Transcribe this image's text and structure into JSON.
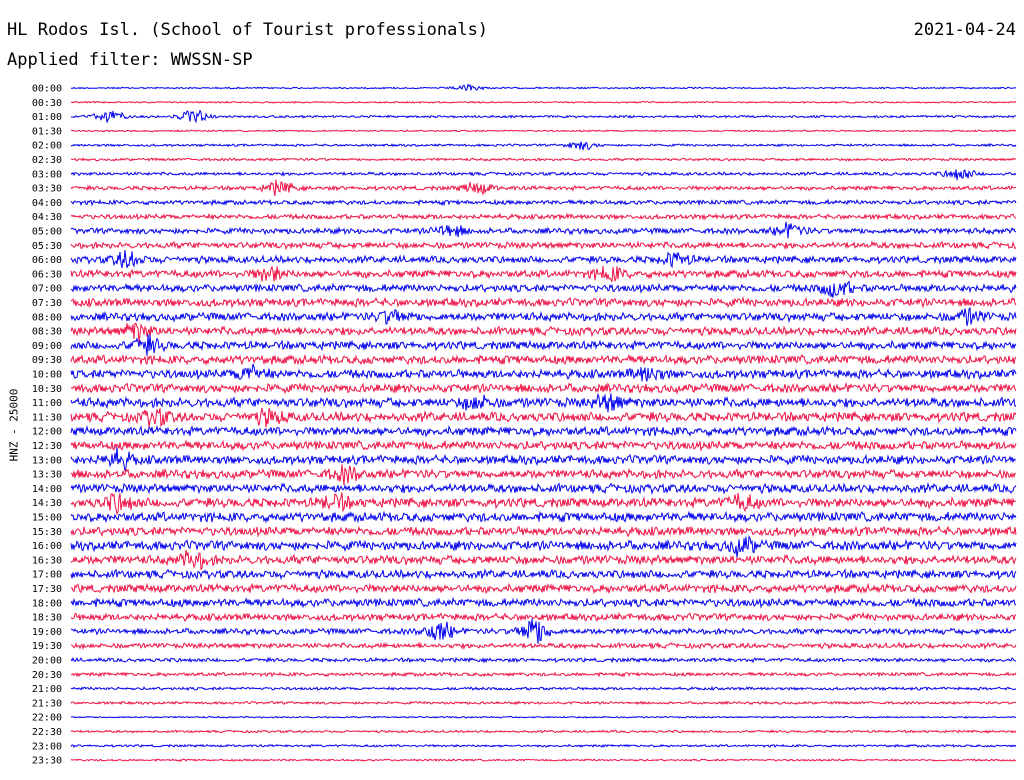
{
  "header": {
    "station": "HL Rodos Isl. (School of Tourist professionals)",
    "date": "2021-04-24",
    "filter": "Applied filter: WWSSN-SP"
  },
  "chart_data": {
    "type": "line",
    "title": "HL Rodos Isl. (School of Tourist professionals)",
    "ylabel": "HNZ - 25000",
    "xlabel": "",
    "trace_colors": [
      "#0000ee",
      "#ee1144"
    ],
    "rows": [
      {
        "label": "00:00",
        "amplitude": 0.12,
        "color": "#0000ee"
      },
      {
        "label": "00:30",
        "amplitude": 0.12,
        "color": "#ee1144"
      },
      {
        "label": "01:00",
        "amplitude": 0.18,
        "color": "#0000ee"
      },
      {
        "label": "01:30",
        "amplitude": 0.12,
        "color": "#ee1144"
      },
      {
        "label": "02:00",
        "amplitude": 0.18,
        "color": "#0000ee"
      },
      {
        "label": "02:30",
        "amplitude": 0.2,
        "color": "#ee1144"
      },
      {
        "label": "03:00",
        "amplitude": 0.25,
        "color": "#0000ee"
      },
      {
        "label": "03:30",
        "amplitude": 0.32,
        "color": "#ee1144"
      },
      {
        "label": "04:00",
        "amplitude": 0.35,
        "color": "#0000ee"
      },
      {
        "label": "04:30",
        "amplitude": 0.38,
        "color": "#ee1144"
      },
      {
        "label": "05:00",
        "amplitude": 0.45,
        "color": "#0000ee"
      },
      {
        "label": "05:30",
        "amplitude": 0.5,
        "color": "#ee1144"
      },
      {
        "label": "06:00",
        "amplitude": 0.55,
        "color": "#0000ee"
      },
      {
        "label": "06:30",
        "amplitude": 0.6,
        "color": "#ee1144"
      },
      {
        "label": "07:00",
        "amplitude": 0.6,
        "color": "#0000ee"
      },
      {
        "label": "07:30",
        "amplitude": 0.65,
        "color": "#ee1144"
      },
      {
        "label": "08:00",
        "amplitude": 0.65,
        "color": "#0000ee"
      },
      {
        "label": "08:30",
        "amplitude": 0.65,
        "color": "#ee1144"
      },
      {
        "label": "09:00",
        "amplitude": 0.65,
        "color": "#0000ee"
      },
      {
        "label": "09:30",
        "amplitude": 0.7,
        "color": "#ee1144"
      },
      {
        "label": "10:00",
        "amplitude": 0.7,
        "color": "#0000ee"
      },
      {
        "label": "10:30",
        "amplitude": 0.7,
        "color": "#ee1144"
      },
      {
        "label": "11:00",
        "amplitude": 0.75,
        "color": "#0000ee"
      },
      {
        "label": "11:30",
        "amplitude": 0.75,
        "color": "#ee1144"
      },
      {
        "label": "12:00",
        "amplitude": 0.7,
        "color": "#0000ee"
      },
      {
        "label": "12:30",
        "amplitude": 0.7,
        "color": "#ee1144"
      },
      {
        "label": "13:00",
        "amplitude": 0.7,
        "color": "#0000ee"
      },
      {
        "label": "13:30",
        "amplitude": 0.7,
        "color": "#ee1144"
      },
      {
        "label": "14:00",
        "amplitude": 0.7,
        "color": "#0000ee"
      },
      {
        "label": "14:30",
        "amplitude": 0.75,
        "color": "#ee1144"
      },
      {
        "label": "15:00",
        "amplitude": 0.75,
        "color": "#0000ee"
      },
      {
        "label": "15:30",
        "amplitude": 0.7,
        "color": "#ee1144"
      },
      {
        "label": "16:00",
        "amplitude": 0.75,
        "color": "#0000ee"
      },
      {
        "label": "16:30",
        "amplitude": 0.7,
        "color": "#ee1144"
      },
      {
        "label": "17:00",
        "amplitude": 0.65,
        "color": "#0000ee"
      },
      {
        "label": "17:30",
        "amplitude": 0.65,
        "color": "#ee1144"
      },
      {
        "label": "18:00",
        "amplitude": 0.65,
        "color": "#0000ee"
      },
      {
        "label": "18:30",
        "amplitude": 0.55,
        "color": "#ee1144"
      },
      {
        "label": "19:00",
        "amplitude": 0.45,
        "color": "#0000ee"
      },
      {
        "label": "19:30",
        "amplitude": 0.4,
        "color": "#ee1144"
      },
      {
        "label": "20:00",
        "amplitude": 0.3,
        "color": "#0000ee"
      },
      {
        "label": "20:30",
        "amplitude": 0.28,
        "color": "#ee1144"
      },
      {
        "label": "21:00",
        "amplitude": 0.22,
        "color": "#0000ee"
      },
      {
        "label": "21:30",
        "amplitude": 0.2,
        "color": "#ee1144"
      },
      {
        "label": "22:00",
        "amplitude": 0.12,
        "color": "#0000ee"
      },
      {
        "label": "22:30",
        "amplitude": 0.18,
        "color": "#ee1144"
      },
      {
        "label": "23:00",
        "amplitude": 0.18,
        "color": "#0000ee"
      },
      {
        "label": "23:30",
        "amplitude": 0.15,
        "color": "#ee1144"
      }
    ],
    "events": [
      {
        "row": "00:00",
        "x": 0.42,
        "amplitude": 0.5
      },
      {
        "row": "01:00",
        "x": 0.04,
        "amplitude": 1.0
      },
      {
        "row": "01:00",
        "x": 0.13,
        "amplitude": 1.0
      },
      {
        "row": "02:00",
        "x": 0.54,
        "amplitude": 0.7
      },
      {
        "row": "03:00",
        "x": 0.94,
        "amplitude": 0.9
      },
      {
        "row": "03:30",
        "x": 0.22,
        "amplitude": 1.0
      },
      {
        "row": "03:30",
        "x": 0.43,
        "amplitude": 0.9
      },
      {
        "row": "05:00",
        "x": 0.4,
        "amplitude": 1.0
      },
      {
        "row": "05:00",
        "x": 0.76,
        "amplitude": 1.0
      },
      {
        "row": "06:00",
        "x": 0.06,
        "amplitude": 1.2
      },
      {
        "row": "06:00",
        "x": 0.64,
        "amplitude": 1.0
      },
      {
        "row": "06:30",
        "x": 0.21,
        "amplitude": 1.0
      },
      {
        "row": "06:30",
        "x": 0.57,
        "amplitude": 1.0
      },
      {
        "row": "07:00",
        "x": 0.81,
        "amplitude": 1.3
      },
      {
        "row": "08:00",
        "x": 0.34,
        "amplitude": 1.0
      },
      {
        "row": "08:00",
        "x": 0.95,
        "amplitude": 1.0
      },
      {
        "row": "08:30",
        "x": 0.07,
        "amplitude": 1.2
      },
      {
        "row": "09:00",
        "x": 0.08,
        "amplitude": 1.2
      },
      {
        "row": "10:00",
        "x": 0.19,
        "amplitude": 1.2
      },
      {
        "row": "10:00",
        "x": 0.61,
        "amplitude": 1.0
      },
      {
        "row": "11:00",
        "x": 0.57,
        "amplitude": 1.2
      },
      {
        "row": "11:00",
        "x": 0.43,
        "amplitude": 1.0
      },
      {
        "row": "11:30",
        "x": 0.09,
        "amplitude": 1.0
      },
      {
        "row": "11:30",
        "x": 0.21,
        "amplitude": 1.0
      },
      {
        "row": "13:00",
        "x": 0.05,
        "amplitude": 1.2
      },
      {
        "row": "13:30",
        "x": 0.29,
        "amplitude": 1.0
      },
      {
        "row": "14:30",
        "x": 0.05,
        "amplitude": 1.2
      },
      {
        "row": "14:30",
        "x": 0.28,
        "amplitude": 1.0
      },
      {
        "row": "14:30",
        "x": 0.71,
        "amplitude": 1.0
      },
      {
        "row": "16:00",
        "x": 0.71,
        "amplitude": 1.2
      },
      {
        "row": "16:30",
        "x": 0.13,
        "amplitude": 1.2
      },
      {
        "row": "19:00",
        "x": 0.39,
        "amplitude": 1.5
      },
      {
        "row": "19:00",
        "x": 0.49,
        "amplitude": 2.2
      }
    ],
    "grid": false,
    "legend": "none"
  }
}
